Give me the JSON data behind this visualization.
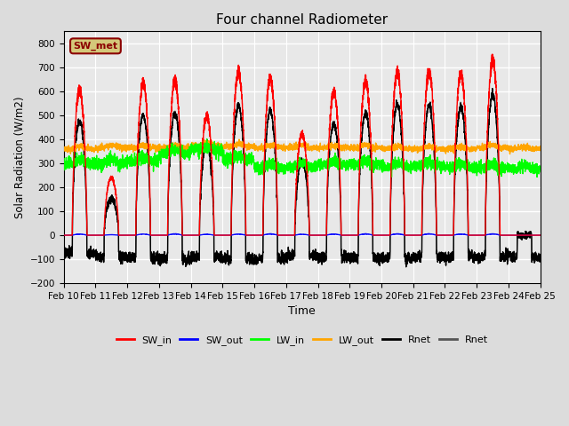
{
  "title": "Four channel Radiometer",
  "xlabel": "Time",
  "ylabel": "Solar Radiation (W/m2)",
  "ylim": [
    -200,
    850
  ],
  "yticks": [
    -200,
    -100,
    0,
    100,
    200,
    300,
    400,
    500,
    600,
    700,
    800
  ],
  "n_days": 15,
  "bg_color": "#dcdcdc",
  "plot_bg": "#e8e8e8",
  "annotation_text": "SW_met",
  "annotation_bg": "#d4c87a",
  "annotation_border": "#8b0000",
  "legend_entries": [
    "SW_in",
    "SW_out",
    "LW_in",
    "LW_out",
    "Rnet",
    "Rnet"
  ],
  "line_colors": [
    "red",
    "blue",
    "lime",
    "orange",
    "black",
    "#555555"
  ],
  "sw_in_peaks": [
    630,
    250,
    660,
    670,
    520,
    710,
    680,
    440,
    620,
    670,
    710,
    710,
    700,
    760,
    0
  ],
  "sw_out_peaks": [
    5,
    2,
    5,
    6,
    4,
    5,
    6,
    4,
    5,
    6,
    6,
    6,
    5,
    6,
    0
  ],
  "lw_in_base": [
    300,
    300,
    310,
    340,
    355,
    315,
    280,
    285,
    295,
    295,
    285,
    290,
    282,
    282,
    278
  ],
  "lw_out_base": [
    360,
    365,
    365,
    365,
    375,
    370,
    365,
    365,
    365,
    365,
    360,
    360,
    360,
    365,
    360
  ],
  "rnet_night": [
    -75,
    -90,
    -95,
    -100,
    -90,
    -100,
    -95,
    -85,
    -90,
    -95,
    -95,
    -90,
    -90,
    -90,
    -90
  ],
  "sunrise": 0.27,
  "sunset": 0.73,
  "pts_per_day": 288
}
